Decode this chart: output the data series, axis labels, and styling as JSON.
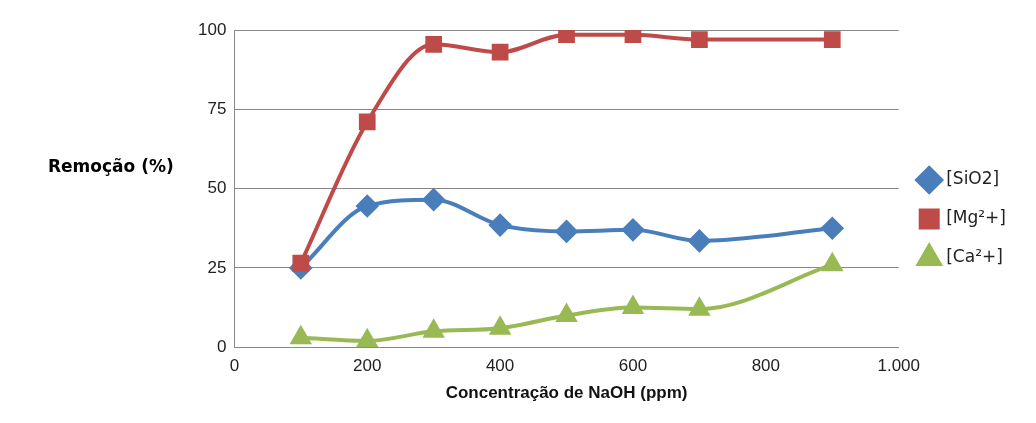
{
  "chart_data": {
    "type": "line",
    "xlabel": "Concentração de NaOH (ppm)",
    "ylabel": "Remoção (%)",
    "x": [
      100,
      200,
      300,
      400,
      500,
      600,
      700,
      900
    ],
    "series": [
      {
        "name": "[SiO2]",
        "color": "#4a7ebb",
        "marker": "diamond",
        "values": [
          25,
          44.5,
          46.5,
          38.5,
          36.5,
          37,
          33.5,
          37.5
        ]
      },
      {
        "name": "[Mg²+]",
        "color": "#be4b48",
        "marker": "square",
        "values": [
          26.5,
          71,
          95.5,
          93,
          98.5,
          98.5,
          97,
          97
        ]
      },
      {
        "name": "[Ca²+]",
        "color": "#98b954",
        "marker": "triangle",
        "values": [
          3,
          2,
          5,
          6,
          10,
          12.5,
          12,
          26
        ]
      }
    ],
    "xlim": [
      0,
      1000
    ],
    "xticks": [
      0,
      200,
      400,
      600,
      800,
      {
        "value": 1000,
        "label": "1.000"
      }
    ],
    "ylim": [
      0,
      100
    ],
    "yticks": [
      0,
      25,
      50,
      75,
      100
    ],
    "grid": "y",
    "legend": "right",
    "line_style": "solid"
  }
}
